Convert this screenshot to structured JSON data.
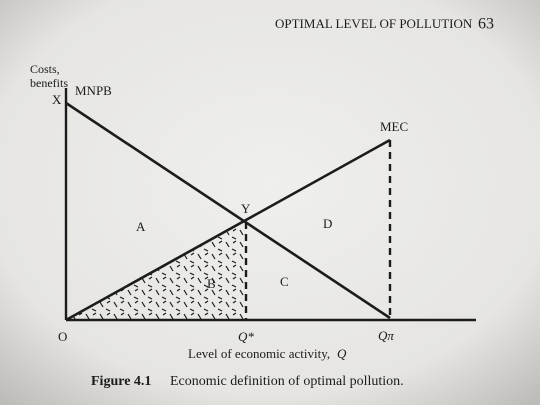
{
  "header": {
    "running_title": "OPTIMAL LEVEL OF POLLUTION",
    "page_number": "63"
  },
  "figure": {
    "y_axis_label": [
      "Costs,",
      "benefits"
    ],
    "curves": {
      "mnpb": "MNPB",
      "mec": "MEC"
    },
    "points": {
      "x": "X",
      "y": "Y",
      "origin": "O",
      "q_star": "Q*",
      "q_pi": "Qπ"
    },
    "areas": {
      "a": "A",
      "b": "B",
      "c": "C",
      "d": "D"
    },
    "x_axis_label": {
      "text": "Level of economic activity,",
      "symbol": "Q"
    },
    "caption": {
      "number": "Figure 4.1",
      "text": "Economic definition of optimal pollution."
    }
  }
}
